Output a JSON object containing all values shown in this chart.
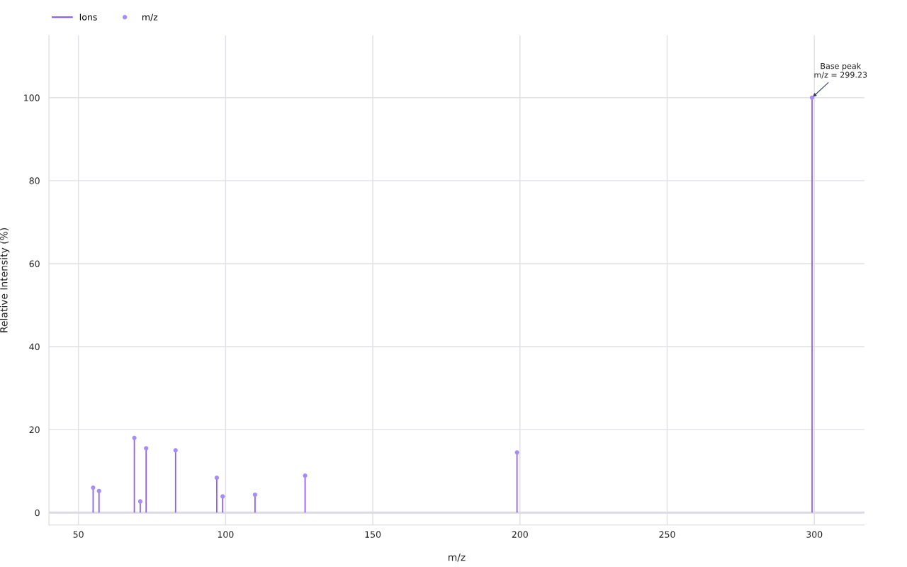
{
  "chart_data": {
    "type": "bar",
    "xlabel": "m/z",
    "ylabel": "Relative Intensity (%)",
    "x": [
      55,
      57,
      69,
      71,
      73,
      83,
      97,
      99,
      110,
      127,
      199,
      299.23
    ],
    "series": [
      {
        "name": "Ions",
        "color": "#8b5cf6",
        "values": [
          6.0,
          5.2,
          18.0,
          2.7,
          15.5,
          15.0,
          8.4,
          3.9,
          4.3,
          8.9,
          14.5,
          100
        ]
      },
      {
        "name": "m/z",
        "type": "scatter",
        "marker": "circle",
        "color": "#a78bfa",
        "values": [
          6.0,
          5.2,
          18.0,
          2.7,
          15.5,
          15.0,
          8.4,
          3.9,
          4.3,
          8.9,
          14.5,
          100
        ]
      }
    ],
    "xlim": [
      40,
      317
    ],
    "ylim": [
      -3,
      115
    ],
    "xticks": [
      50,
      100,
      150,
      200,
      250,
      300
    ],
    "yticks": [
      0,
      20,
      40,
      60,
      80,
      100
    ],
    "grid": true,
    "legend": "top left",
    "ref_lines": [
      {
        "axis": "y",
        "value": 0,
        "color": "#dcdae4"
      }
    ],
    "annotations": [
      {
        "text": "Base peak\nm/z = 299.23",
        "x": 299.23,
        "y": 100
      }
    ]
  }
}
